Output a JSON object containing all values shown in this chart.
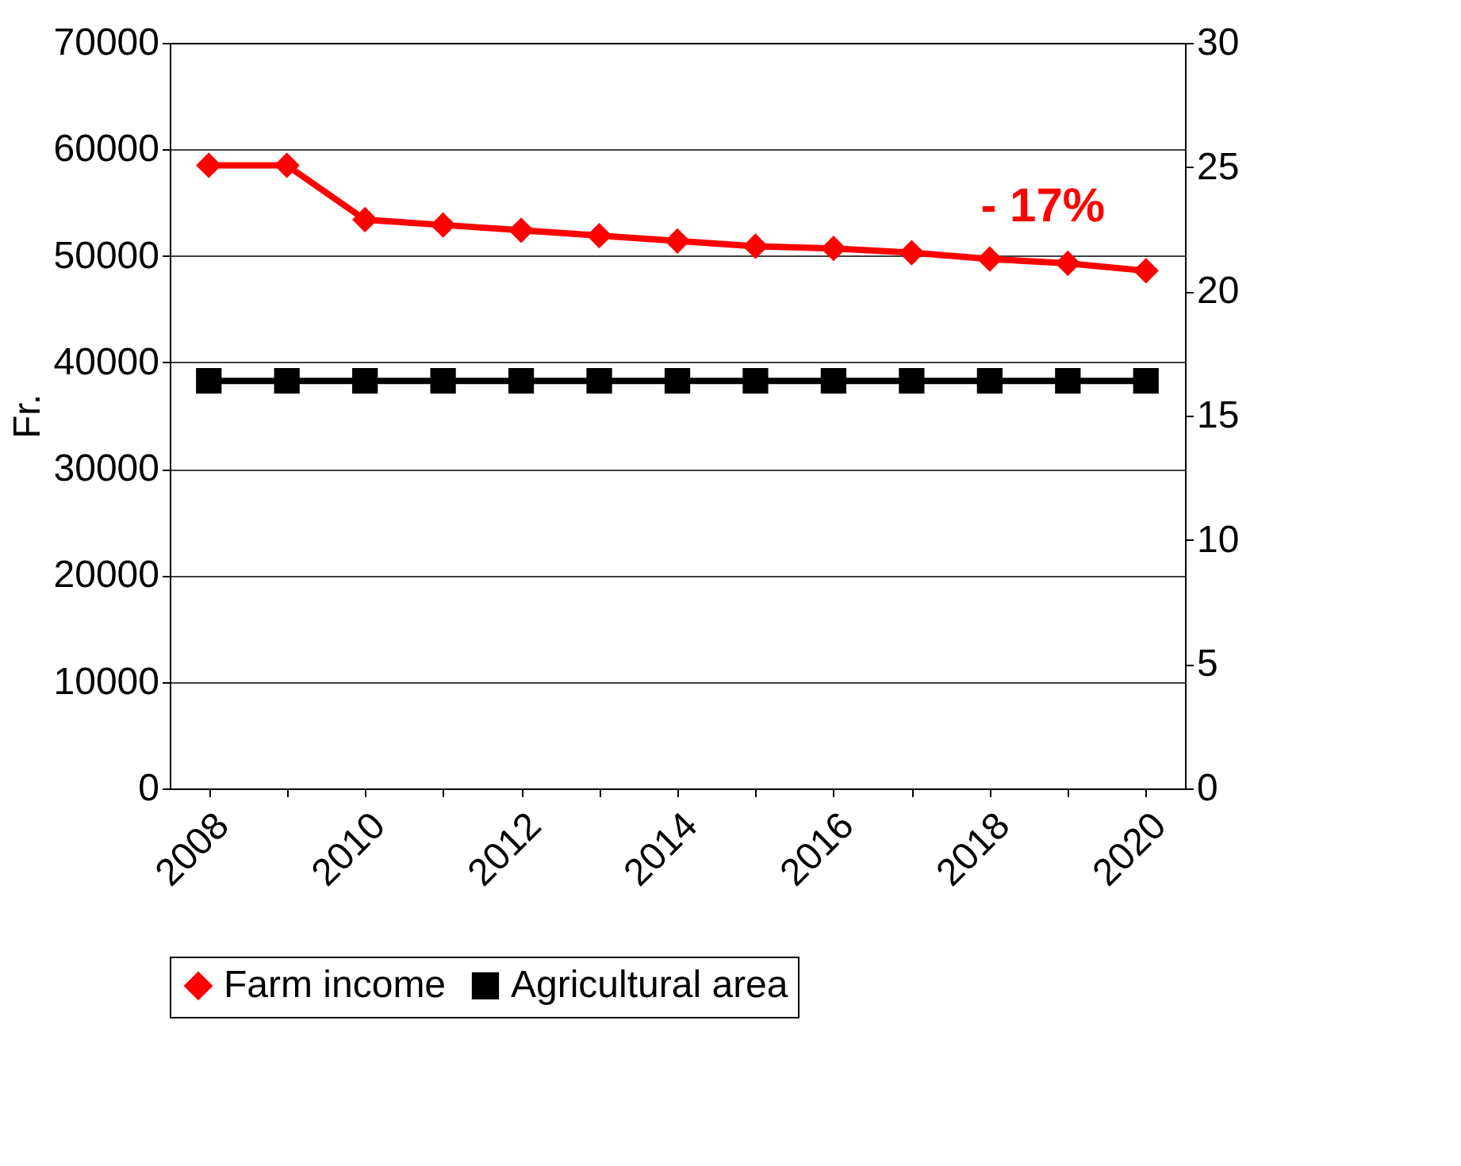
{
  "chart_data": {
    "type": "line",
    "ylabel": "Fr.",
    "categories": [
      "2008",
      null,
      "2010",
      null,
      "2012",
      null,
      "2014",
      null,
      "2016",
      null,
      "2018",
      null,
      "2020"
    ],
    "series": [
      {
        "name": "Farm income",
        "color": "#ff0000",
        "marker": "diamond",
        "values": [
          58500,
          58500,
          53400,
          52900,
          52400,
          51900,
          51400,
          50900,
          50700,
          50300,
          49700,
          49300,
          48600
        ]
      },
      {
        "name": "Agricultural area",
        "color": "#000000",
        "marker": "square",
        "axis": "y2",
        "values": [
          16.4,
          16.4,
          16.4,
          16.4,
          16.4,
          16.4,
          16.4,
          16.4,
          16.4,
          16.4,
          16.4,
          16.4,
          16.4
        ]
      }
    ],
    "ylim": [
      0,
      70000
    ],
    "yticks": [
      0,
      10000,
      20000,
      30000,
      40000,
      50000,
      60000,
      70000
    ],
    "y2lim": [
      0,
      30
    ],
    "y2ticks": [
      0,
      5,
      10,
      15,
      20,
      25,
      30
    ],
    "annotations": [
      "- 17%"
    ],
    "grid": "y",
    "legend": "bottom",
    "line_style": "solid"
  }
}
